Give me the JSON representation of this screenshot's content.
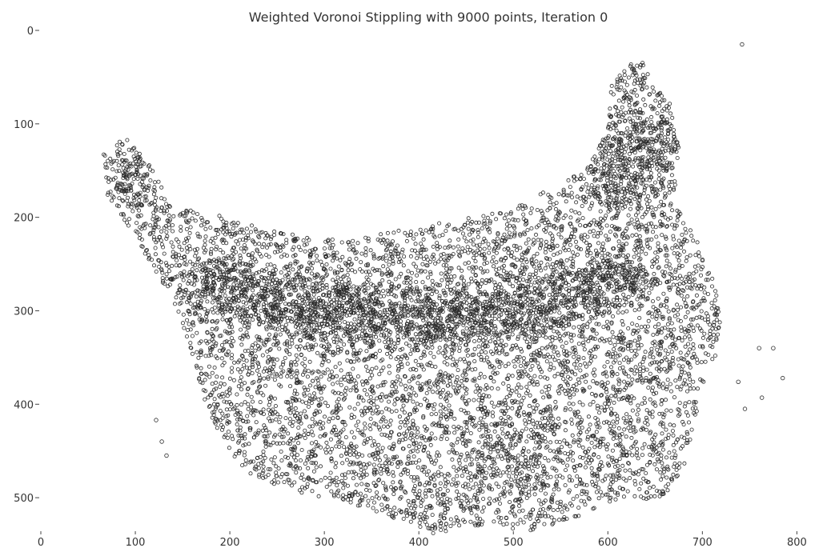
{
  "chart_data": {
    "type": "scatter",
    "title": "Weighted Voronoi Stippling with 9000 points, Iteration 0",
    "xlabel": "",
    "ylabel": "",
    "xlim": [
      0,
      820
    ],
    "ylim": [
      535,
      0
    ],
    "y_inverted": true,
    "xticks": [
      0,
      100,
      200,
      300,
      400,
      500,
      600,
      700,
      800
    ],
    "yticks": [
      0,
      100,
      200,
      300,
      400,
      500
    ],
    "grid": false,
    "legend": "none",
    "marker": "hollow-circle",
    "point_count": 9000,
    "point_color": "#2b2b2b",
    "region_outline_xy": [
      [
        65,
        120
      ],
      [
        90,
        115
      ],
      [
        120,
        150
      ],
      [
        140,
        190
      ],
      [
        180,
        195
      ],
      [
        250,
        215
      ],
      [
        320,
        225
      ],
      [
        400,
        210
      ],
      [
        480,
        195
      ],
      [
        540,
        170
      ],
      [
        580,
        145
      ],
      [
        600,
        105
      ],
      [
        605,
        45
      ],
      [
        635,
        30
      ],
      [
        665,
        75
      ],
      [
        675,
        125
      ],
      [
        670,
        185
      ],
      [
        690,
        215
      ],
      [
        710,
        260
      ],
      [
        720,
        300
      ],
      [
        715,
        345
      ],
      [
        700,
        385
      ],
      [
        690,
        425
      ],
      [
        680,
        470
      ],
      [
        660,
        505
      ],
      [
        620,
        500
      ],
      [
        570,
        520
      ],
      [
        520,
        535
      ],
      [
        470,
        530
      ],
      [
        420,
        540
      ],
      [
        380,
        525
      ],
      [
        340,
        510
      ],
      [
        300,
        500
      ],
      [
        255,
        490
      ],
      [
        210,
        470
      ],
      [
        185,
        430
      ],
      [
        170,
        385
      ],
      [
        160,
        345
      ],
      [
        145,
        300
      ],
      [
        120,
        255
      ],
      [
        95,
        215
      ],
      [
        70,
        175
      ]
    ],
    "dense_band_xy": [
      [
        180,
        270
      ],
      [
        260,
        290
      ],
      [
        340,
        305
      ],
      [
        420,
        310
      ],
      [
        500,
        300
      ],
      [
        560,
        285
      ],
      [
        610,
        265
      ]
    ],
    "outlier_points": [
      [
        742,
        15
      ],
      [
        738,
        376
      ],
      [
        745,
        405
      ],
      [
        760,
        340
      ],
      [
        763,
        393
      ],
      [
        775,
        340
      ],
      [
        785,
        372
      ],
      [
        122,
        417
      ],
      [
        128,
        440
      ],
      [
        133,
        455
      ]
    ]
  }
}
